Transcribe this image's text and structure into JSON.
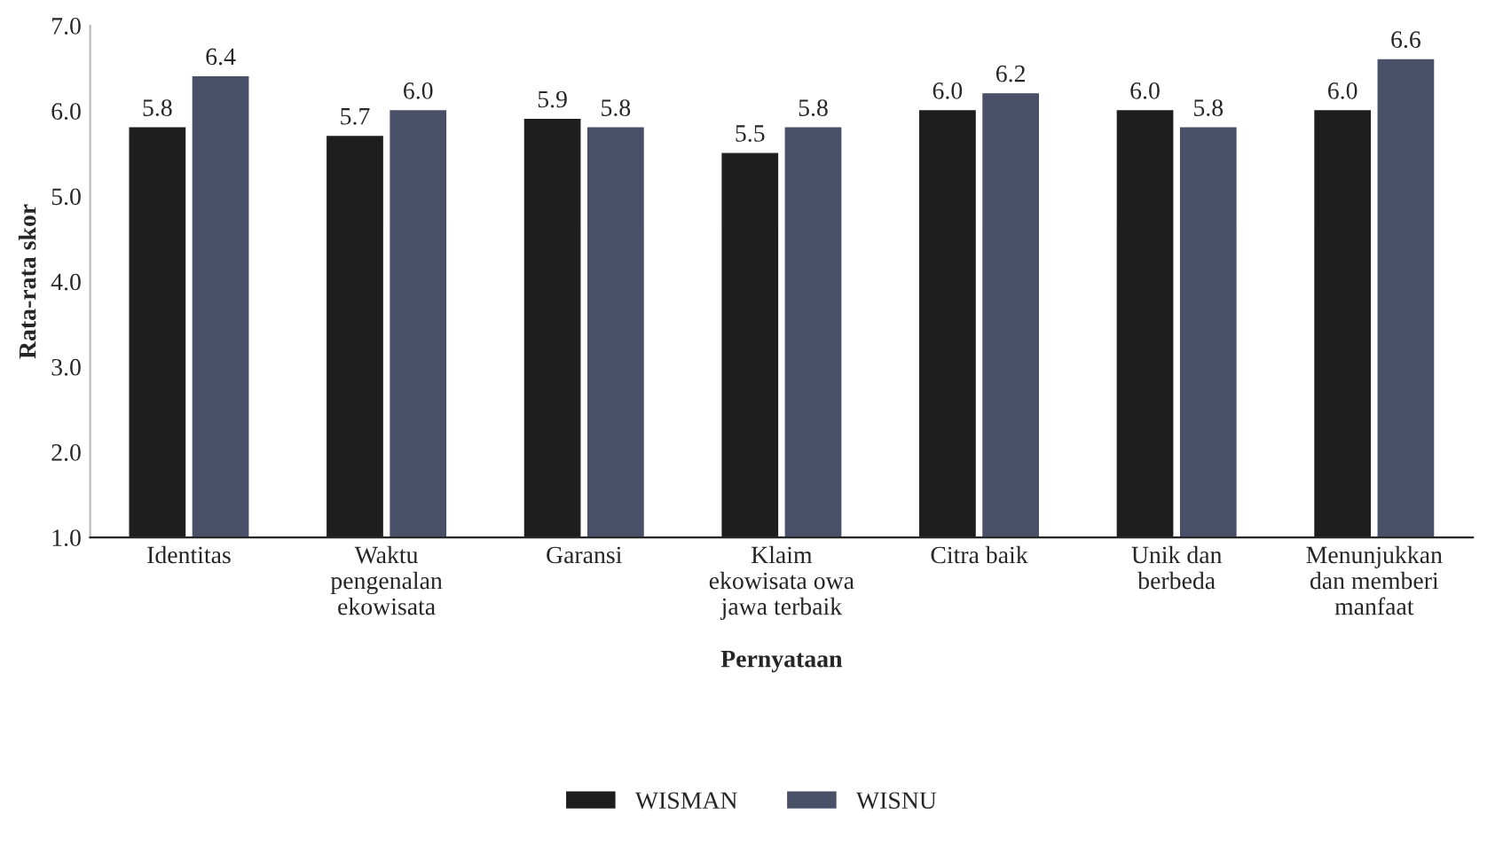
{
  "chart_data": {
    "type": "bar",
    "xlabel": "Pernyataan",
    "ylabel": "Rata-rata skor",
    "categories": [
      "Identitas",
      "Waktu\npengenalan\nekowisata",
      "Garansi",
      "Klaim\nekowisata owa\njawa terbaik",
      "Citra baik",
      "Unik dan\nberbeda",
      "Menunjukkan\ndan memberi\nmanfaat"
    ],
    "series": [
      {
        "name": "WISMAN",
        "color": "#1e1e1e",
        "values": [
          5.8,
          5.7,
          5.9,
          5.5,
          6.0,
          6.0,
          6.0
        ],
        "value_labels": [
          "5.8",
          "5.7",
          "5.9",
          "5.5",
          "6.0",
          "6.0",
          "6.0"
        ]
      },
      {
        "name": "WISNU",
        "color": "#4a5068",
        "values": [
          6.4,
          6.0,
          5.8,
          5.8,
          6.2,
          5.8,
          6.6
        ],
        "value_labels": [
          "6.4",
          "6.0",
          "5.8",
          "5.8",
          "6.2",
          "5.8",
          "6.6"
        ]
      }
    ],
    "ylim": [
      1.0,
      7.0
    ],
    "yticks": [
      {
        "value": 1,
        "label": "1.0"
      },
      {
        "value": 2,
        "label": "2.0"
      },
      {
        "value": 3,
        "label": "3.0"
      },
      {
        "value": 4,
        "label": "4.0"
      },
      {
        "value": 5,
        "label": "5.0"
      },
      {
        "value": 6,
        "label": "6.0"
      },
      {
        "value": 7,
        "label": "7.0"
      }
    ],
    "legend": "bottom",
    "grid": false
  }
}
